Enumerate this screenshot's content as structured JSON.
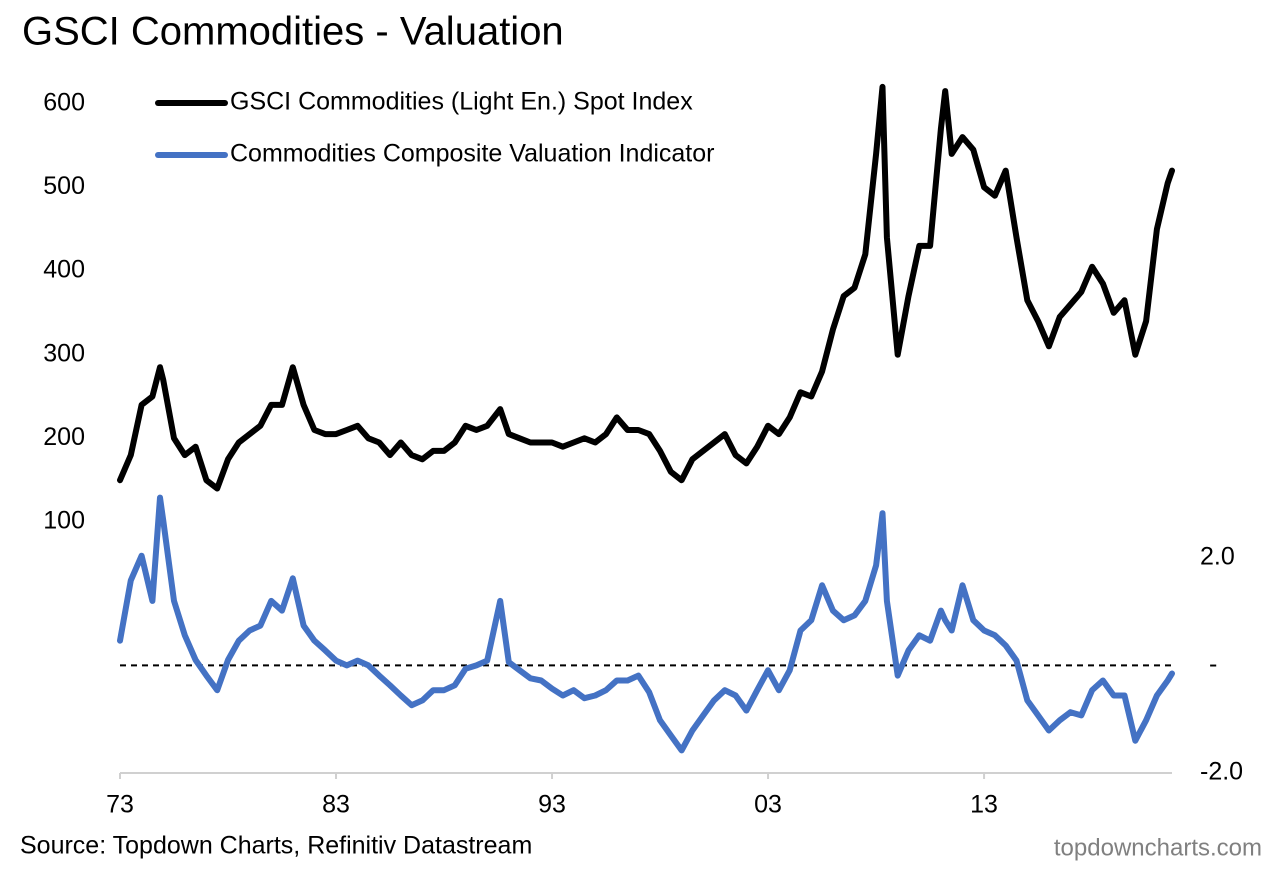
{
  "chart_data": {
    "type": "line",
    "title": "GSCI Commodities - Valuation",
    "source": "Source: Topdown Charts, Refinitiv Datastream",
    "watermark": "topdowncharts.com",
    "legend": "upper left",
    "zero_line": true,
    "x": [
      1973,
      1973.5,
      1974,
      1974.5,
      1974.85,
      1975,
      1975.5,
      1976,
      1976.5,
      1977,
      1977.5,
      1978,
      1978.5,
      1979,
      1979.5,
      1980,
      1980.5,
      1981,
      1981.5,
      1982,
      1982.5,
      1983,
      1983.5,
      1984,
      1984.5,
      1985,
      1985.5,
      1986,
      1986.5,
      1987,
      1987.5,
      1988,
      1988.5,
      1989,
      1989.5,
      1990,
      1990.6,
      1991,
      1991.5,
      1992,
      1992.5,
      1993,
      1993.5,
      1994,
      1994.5,
      1995,
      1995.5,
      1996,
      1996.5,
      1997,
      1997.5,
      1998,
      1998.5,
      1999,
      1999.5,
      2000,
      2000.5,
      2001,
      2001.5,
      2002,
      2002.5,
      2003,
      2003.5,
      2004,
      2004.5,
      2005,
      2005.5,
      2006,
      2006.5,
      2007,
      2007.5,
      2008,
      2008.3,
      2008.5,
      2009,
      2009.5,
      2010,
      2010.5,
      2011,
      2011.2,
      2011.5,
      2012,
      2012.5,
      2013,
      2013.5,
      2014,
      2014.5,
      2015,
      2015.5,
      2016,
      2016.5,
      2017,
      2017.5,
      2018,
      2018.5,
      2019,
      2019.5,
      2020,
      2020.5,
      2021,
      2021.5,
      2021.7
    ],
    "xlim": [
      1973,
      2021.7
    ],
    "xticks": [
      {
        "value": 1973,
        "label": "73"
      },
      {
        "value": 1983,
        "label": "83"
      },
      {
        "value": 1993,
        "label": "93"
      },
      {
        "value": 2003,
        "label": "03"
      },
      {
        "value": 2013,
        "label": "13"
      }
    ],
    "ylim": [
      -200,
      700
    ],
    "yticks": [
      100,
      200,
      300,
      400,
      500,
      600
    ],
    "y2lim": [
      -2,
      12
    ],
    "y2ticks": [
      {
        "value": -2,
        "label": "-2.0"
      },
      {
        "value": 0,
        "label": "-"
      },
      {
        "value": 2,
        "label": "2.0"
      }
    ],
    "series": [
      {
        "name": "GSCI Commodities (Light En.) Spot Index",
        "color": "#000000",
        "values": [
          150,
          180,
          240,
          250,
          285,
          270,
          200,
          180,
          190,
          150,
          140,
          175,
          195,
          205,
          215,
          240,
          240,
          285,
          240,
          210,
          205,
          205,
          210,
          215,
          200,
          195,
          180,
          195,
          180,
          175,
          185,
          185,
          195,
          215,
          210,
          215,
          235,
          205,
          200,
          195,
          195,
          195,
          190,
          195,
          200,
          195,
          205,
          225,
          210,
          210,
          205,
          185,
          160,
          150,
          175,
          185,
          195,
          205,
          180,
          170,
          190,
          215,
          205,
          225,
          255,
          250,
          280,
          330,
          370,
          380,
          420,
          540,
          620,
          440,
          300,
          370,
          430,
          430,
          570,
          615,
          540,
          560,
          545,
          500,
          490,
          520,
          440,
          365,
          340,
          310,
          345,
          360,
          375,
          405,
          385,
          350,
          365,
          300,
          340,
          450,
          505,
          520
        ]
      },
      {
        "name": "Commodities Composite Valuation Indicator",
        "color": "#4472c4",
        "axis": "y2",
        "values": [
          0.46,
          1.58,
          2.04,
          1.2,
          3.12,
          2.7,
          1.2,
          0.56,
          0.1,
          -0.19,
          -0.46,
          0.1,
          0.46,
          0.65,
          0.74,
          1.2,
          1.02,
          1.62,
          0.74,
          0.46,
          0.28,
          0.09,
          0,
          0.09,
          0,
          -0.19,
          -0.37,
          -0.56,
          -0.74,
          -0.65,
          -0.46,
          -0.46,
          -0.37,
          -0.06,
          0,
          0.09,
          1.2,
          0.06,
          -0.09,
          -0.24,
          -0.28,
          -0.43,
          -0.56,
          -0.46,
          -0.61,
          -0.56,
          -0.46,
          -0.28,
          -0.28,
          -0.19,
          -0.5,
          -1.02,
          -1.3,
          -1.58,
          -1.21,
          -0.93,
          -0.65,
          -0.46,
          -0.56,
          -0.84,
          -0.46,
          -0.09,
          -0.46,
          -0.09,
          0.65,
          0.84,
          1.49,
          1.02,
          0.84,
          0.93,
          1.2,
          1.86,
          2.83,
          1.2,
          -0.19,
          0.28,
          0.56,
          0.46,
          1.02,
          0.84,
          0.65,
          1.49,
          0.84,
          0.65,
          0.56,
          0.37,
          0.09,
          -0.65,
          -0.93,
          -1.21,
          -1.02,
          -0.87,
          -0.93,
          -0.46,
          -0.28,
          -0.56,
          -0.56,
          -1.4,
          -1.02,
          -0.56,
          -0.28,
          -0.15
        ]
      }
    ]
  }
}
